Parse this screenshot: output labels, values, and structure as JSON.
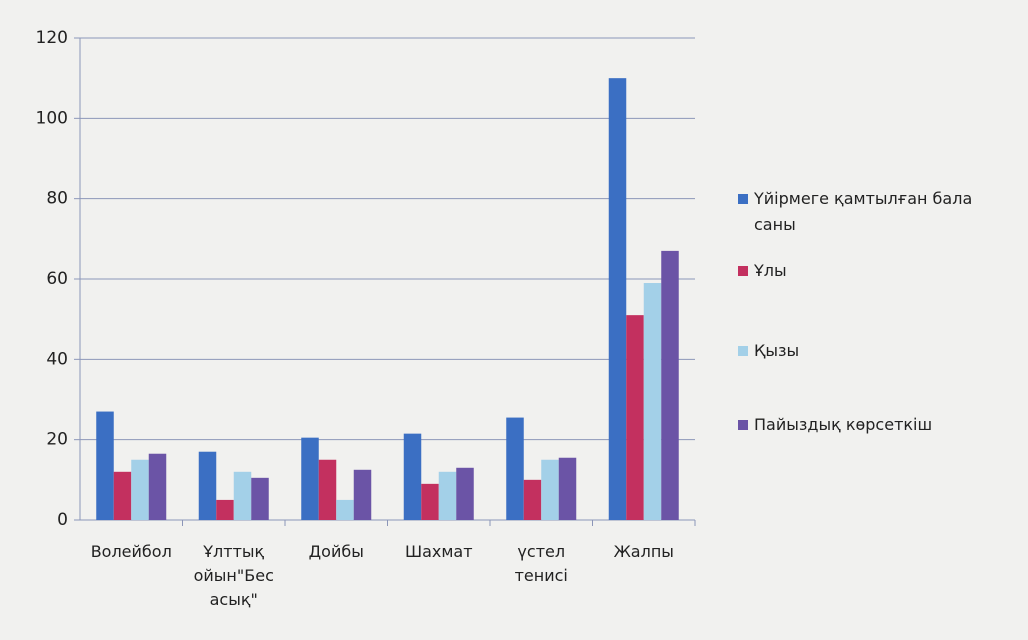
{
  "chart_data": {
    "type": "bar",
    "categories": [
      "Волейбол",
      "Ұлттық ойын\"Бес асық\"",
      "Дойбы",
      "Шахмат",
      "үстел тенисі",
      "Жалпы"
    ],
    "series": [
      {
        "name": "Үйірмеге қамтылған бала саны",
        "color": "#3b6fc3",
        "values": [
          27,
          17,
          20.5,
          21.5,
          25.5,
          110
        ]
      },
      {
        "name": "Ұлы",
        "color": "#c3305f",
        "values": [
          12,
          5,
          15,
          9,
          10,
          51
        ]
      },
      {
        "name": "Қызы",
        "color": "#a3d0e8",
        "values": [
          15,
          12,
          5,
          12,
          15,
          59
        ]
      },
      {
        "name": "Пайыздық көрсеткіш",
        "color": "#6b54a6",
        "values": [
          16.5,
          10.5,
          12.5,
          13,
          15.5,
          67
        ]
      }
    ],
    "ylim": [
      0,
      120
    ],
    "yticks": [
      0,
      20,
      40,
      60,
      80,
      100,
      120
    ],
    "grid": true,
    "legend": "right"
  }
}
